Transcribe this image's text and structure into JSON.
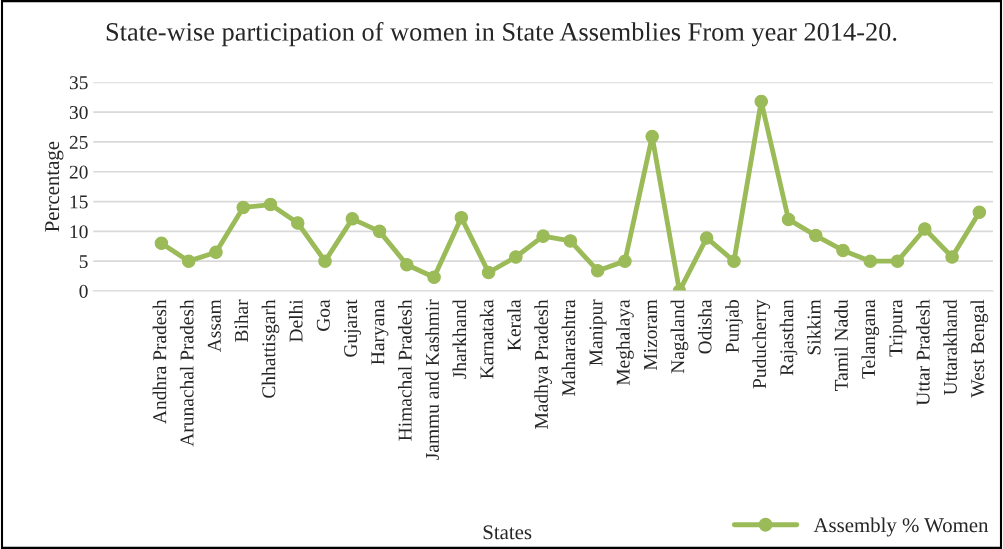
{
  "chart_data": {
    "type": "line",
    "title": "State-wise participation of women in State Assemblies From year 2014-20.",
    "xlabel": "States",
    "ylabel": "Percentage",
    "categories": [
      null,
      null,
      "Andhra Pradesh",
      "Arunachal Pradesh",
      "Assam",
      "Bihar",
      "Chhattisgarh",
      "Delhi",
      "Goa",
      "Gujarat",
      "Haryana",
      "Himachal Pradesh",
      "Jammu and Kashmir",
      "Jharkhand",
      "Karnataka",
      "Kerala",
      "Madhya Pradesh",
      "Maharashtra",
      "Manipur",
      "Meghalaya",
      "Mizoram",
      "Nagaland",
      "Odisha",
      "Punjab",
      "Puducherry",
      "Rajasthan",
      "Sikkim",
      "Tamil Nadu",
      "Telangana",
      "Tripura",
      "Uttar Pradesh",
      "Uttarakhand",
      "West Bengal"
    ],
    "series": [
      {
        "name": "Assembly % Women",
        "color": "#9bbb59",
        "values": [
          null,
          null,
          8,
          5,
          6.5,
          14,
          14.5,
          11.4,
          5,
          12.1,
          10,
          4.4,
          2.3,
          12.3,
          3.1,
          5.7,
          9.2,
          8.4,
          3.4,
          5,
          25.9,
          0,
          8.9,
          5,
          31.8,
          12,
          9.3,
          6.8,
          5,
          5,
          10.4,
          5.7,
          13.2
        ]
      }
    ],
    "ylim": [
      0,
      35
    ],
    "yticks": [
      0,
      5,
      10,
      15,
      20,
      25,
      30,
      35
    ],
    "grid": "y",
    "legend": "bottom right",
    "marker": "circle",
    "line_style": "solid"
  }
}
